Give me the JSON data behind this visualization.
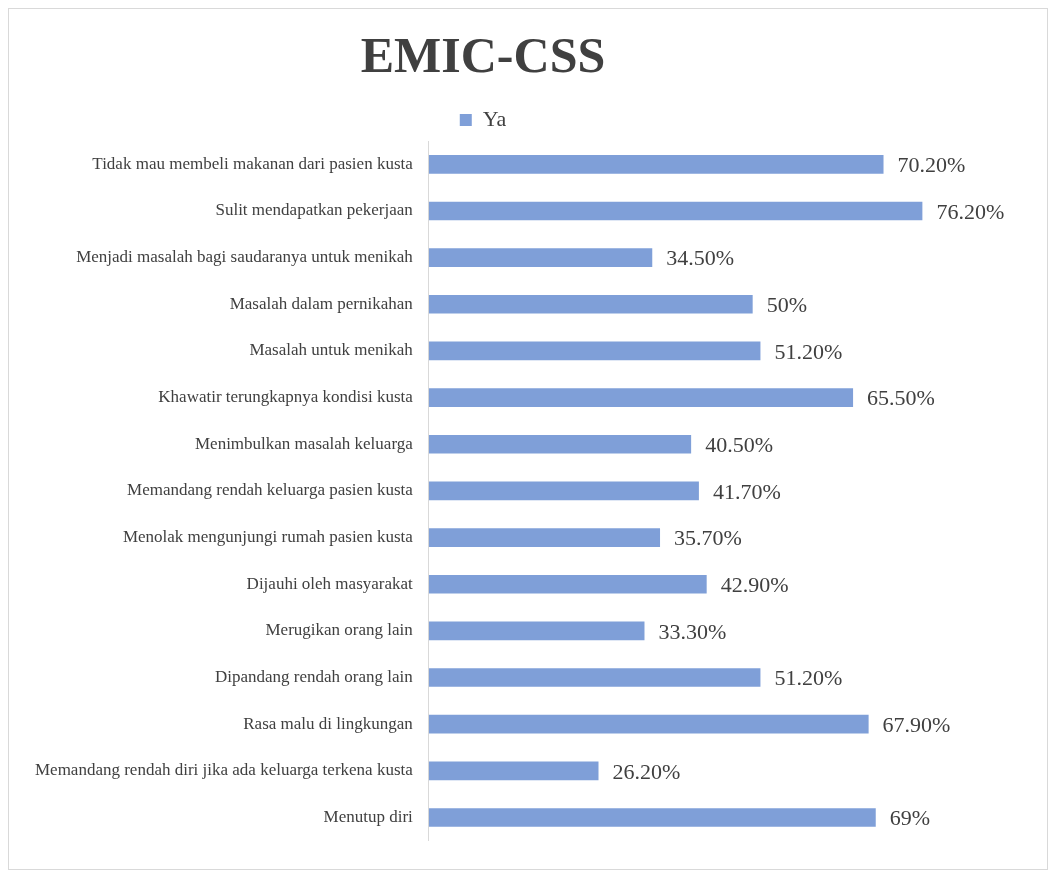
{
  "chart_data": {
    "type": "bar",
    "orientation": "horizontal",
    "title": "EMIC-CSS",
    "legend": "top",
    "categories": [
      "Tidak mau membeli makanan dari pasien kusta",
      "Sulit mendapatkan pekerjaan",
      "Menjadi masalah bagi saudaranya untuk menikah",
      "Masalah dalam pernikahan",
      "Masalah untuk menikah",
      "Khawatir terungkapnya kondisi kusta",
      "Menimbulkan masalah keluarga",
      "Memandang rendah keluarga pasien kusta",
      "Menolak mengunjungi rumah pasien kusta",
      "Dijauhi oleh masyarakat",
      "Merugikan orang lain",
      "Dipandang rendah orang lain",
      "Rasa malu di lingkungan",
      "Memandang rendah diri jika ada keluarga terkena kusta",
      "Menutup diri"
    ],
    "series": [
      {
        "name": "Ya",
        "color": "#7f9fd8",
        "values": [
          70.2,
          76.2,
          34.5,
          50,
          51.2,
          65.5,
          40.5,
          41.7,
          35.7,
          42.9,
          33.3,
          51.2,
          67.9,
          26.2,
          69
        ],
        "value_labels": [
          "70.20%",
          "76.20%",
          "34.50%",
          "50%",
          "51.20%",
          "65.50%",
          "40.50%",
          "41.70%",
          "35.70%",
          "42.90%",
          "33.30%",
          "51.20%",
          "67.90%",
          "26.20%",
          "69%"
        ]
      }
    ]
  }
}
